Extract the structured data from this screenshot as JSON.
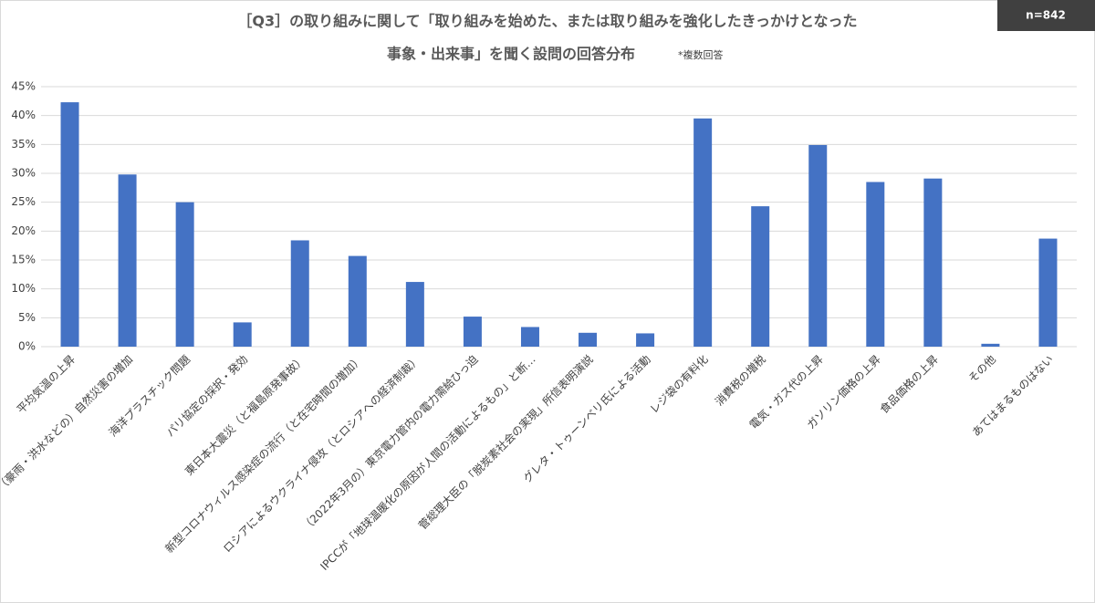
{
  "chart_data": {
    "type": "bar",
    "title": "［Q3］の取り組みに関して「取り組みを始めた、または取り組みを強化したきっかけとなった",
    "subtitle": "事象・出来事」を聞く設問の回答分布",
    "note": "*複数回答",
    "sample_size": "n=842",
    "categories": [
      "平均気温の上昇",
      "（豪雨・洪水などの）自然災害の増加",
      "海洋プラスチック問題",
      "パリ協定の採択・発効",
      "東日本大震災（と福島原発事故）",
      "新型コロナウィルス感染症の流行（と在宅時間の増加）",
      "ロシアによるウクライナ侵攻（とロシアへの経済制裁）",
      "（2022年3月の）東京電力管内の電力需給ひっ迫",
      "IPCCが「地球温暖化の原因が人間の活動によるもの」と断…",
      "菅総理大臣の「脱炭素社会の実現」所信表明演説",
      "グレタ・トゥーンベリ氏による活動",
      "レジ袋の有料化",
      "消費税の増税",
      "電気・ガス代の上昇",
      "ガソリン価格の上昇",
      "食品価格の上昇",
      "その他",
      "あてはまるものはない"
    ],
    "values": [
      42.3,
      29.8,
      25.0,
      4.2,
      18.4,
      15.7,
      11.2,
      5.2,
      3.4,
      2.4,
      2.3,
      39.5,
      24.3,
      34.9,
      28.5,
      29.1,
      0.5,
      18.7
    ],
    "color": "#4472c4",
    "ylim": [
      0,
      45
    ],
    "yticks": [
      {
        "value": 0,
        "label": "0%"
      },
      {
        "value": 5,
        "label": "5%"
      },
      {
        "value": 10,
        "label": "10%"
      },
      {
        "value": 15,
        "label": "15%"
      },
      {
        "value": 20,
        "label": "20%"
      },
      {
        "value": 25,
        "label": "25%"
      },
      {
        "value": 30,
        "label": "30%"
      },
      {
        "value": 35,
        "label": "35%"
      },
      {
        "value": 40,
        "label": "40%"
      },
      {
        "value": 45,
        "label": "45%"
      }
    ],
    "grid": true
  }
}
